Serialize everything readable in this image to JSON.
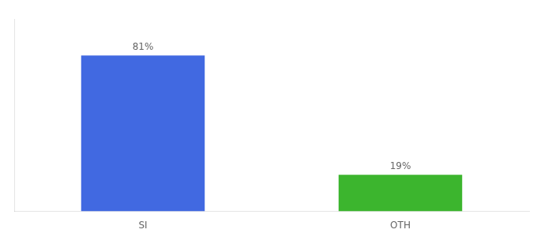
{
  "chart_data": {
    "type": "bar",
    "categories": [
      "SI",
      "OTH"
    ],
    "values": [
      81,
      19
    ],
    "value_labels": [
      "81%",
      "19%"
    ],
    "colors": [
      "#4169e1",
      "#3cb52e"
    ],
    "ylim": [
      0,
      100
    ],
    "grid": false,
    "data_labels": true,
    "tick_labels": "x"
  }
}
